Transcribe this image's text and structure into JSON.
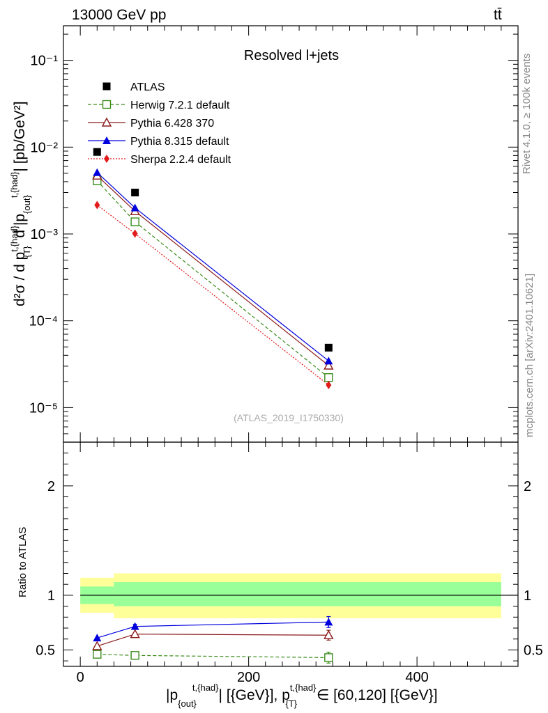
{
  "header": {
    "energy_label": "13000 GeV pp",
    "process_label": "tt̄"
  },
  "side_labels": {
    "rivet": "Rivet 4.1.0, ≥ 100k events",
    "mcplots": "mcplots.cern.ch [arXiv:2401.10621]"
  },
  "chart_data": [
    {
      "type": "line",
      "title": "Resolved l+jets",
      "analysis_tag": "(ATLAS_2019_I1750330)",
      "ylabel": {
        "main": "d²σ / d p",
        "sup_pt": "t,{had}",
        "sub_pt": "{T}",
        "mid": " d |p",
        "sub_pout": "{out}",
        "sup_pout": "t,{had}",
        "tail": "| [pb/GeV²]"
      },
      "yscale": "log",
      "ylim": [
        4e-06,
        0.25
      ],
      "xlim": [
        -20,
        520
      ],
      "xticks": [
        0,
        200,
        400
      ],
      "xtick_labels": [
        "0",
        "200",
        "400"
      ],
      "ytick_labels": [
        "10⁻¹",
        "10⁻²",
        "10⁻³",
        "10⁻⁴",
        "10⁻⁵"
      ],
      "ytick_values": [
        0.1,
        0.01,
        0.001,
        0.0001,
        1e-05
      ],
      "x": [
        20,
        65,
        295
      ],
      "series": [
        {
          "name": "ATLAS",
          "marker": "square-filled",
          "color": "#000000",
          "values": [
            0.0088,
            0.003,
            4.9e-05
          ]
        },
        {
          "name": "Herwig 7.2.1 default",
          "marker": "square-open",
          "color": "#3a8c1a",
          "line": "dashed",
          "values": [
            0.0041,
            0.00138,
            2.22e-05
          ]
        },
        {
          "name": "Pythia 6.428 370",
          "marker": "triangle-open",
          "color": "#8b1a1a",
          "line": "solid",
          "values": [
            0.0047,
            0.00183,
            3.05e-05
          ]
        },
        {
          "name": "Pythia 8.315 default",
          "marker": "triangle-filled",
          "color": "#0000dd",
          "line": "solid",
          "values": [
            0.0051,
            0.002,
            3.45e-05
          ]
        },
        {
          "name": "Sherpa 2.2.4 default",
          "marker": "diamond-filled",
          "color": "#e21b1b",
          "line": "dotted",
          "values": [
            0.00215,
            0.00101,
            1.82e-05
          ]
        }
      ]
    },
    {
      "type": "line",
      "title": "",
      "ylabel": "Ratio to ATLAS",
      "xlabel": {
        "part1": "|p",
        "sub1": "{out}",
        "sup1": "t,{had}",
        "part2": "| [{GeV}], p",
        "sup2": "t,{had}",
        "sub2": "{T}",
        "part3": " ∈ [60,120] [{GeV}]"
      },
      "ylim": [
        0.35,
        2.4
      ],
      "xlim": [
        -20,
        520
      ],
      "yticks": [
        0.5,
        1,
        2
      ],
      "ytick_labels": [
        "0.5",
        "1",
        "2"
      ],
      "bands": [
        {
          "x": [
            0,
            40
          ],
          "inner": [
            0.92,
            1.08
          ],
          "outer": [
            0.84,
            1.16
          ]
        },
        {
          "x": [
            40,
            500
          ],
          "inner": [
            0.9,
            1.12
          ],
          "outer": [
            0.79,
            1.2
          ]
        }
      ],
      "x": [
        20,
        65,
        295
      ],
      "series": [
        {
          "name": "Herwig 7.2.1 default",
          "values": [
            0.46,
            0.45,
            0.43
          ],
          "errors": [
            0,
            0,
            0.05
          ]
        },
        {
          "name": "Pythia 6.428 370",
          "values": [
            0.535,
            0.645,
            0.635
          ],
          "errors": [
            0,
            0,
            0.045
          ]
        },
        {
          "name": "Pythia 8.315 default",
          "values": [
            0.61,
            0.715,
            0.755
          ],
          "errors": [
            0,
            0.02,
            0.05
          ]
        }
      ]
    }
  ]
}
